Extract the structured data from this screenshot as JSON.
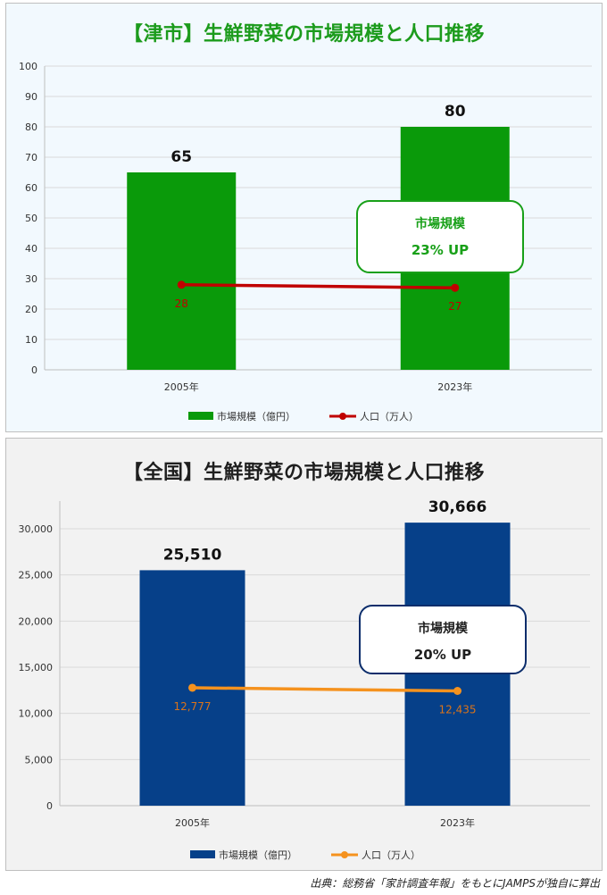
{
  "colors": {
    "tsu_bar": "#0a9a0a",
    "tsu_line": "#c00000",
    "tsu_title": "#1c9b1c",
    "japan_bar": "#064089",
    "japan_line": "#f5921e",
    "japan_title": "#1f1f1f"
  },
  "chart_data": [
    {
      "type": "bar",
      "title": "【津市】生鮮野菜の市場規模と人口推移",
      "categories": [
        "2005年",
        "2023年"
      ],
      "series": [
        {
          "name": "市場規模（億円）",
          "type": "bar",
          "values": [
            65,
            80
          ],
          "value_labels": [
            "65",
            "80"
          ]
        },
        {
          "name": "人口（万人）",
          "type": "line",
          "values": [
            28,
            27
          ],
          "value_labels": [
            "28",
            "27"
          ]
        }
      ],
      "ylim": [
        0,
        100
      ],
      "yticks": [
        "0",
        "10",
        "20",
        "30",
        "40",
        "50",
        "60",
        "70",
        "80",
        "90",
        "100"
      ],
      "grid": true,
      "legend_position": "bottom",
      "callout": {
        "line1": "市場規模",
        "line2": "23% UP"
      }
    },
    {
      "type": "bar",
      "title": "【全国】生鮮野菜の市場規模と人口推移",
      "categories": [
        "2005年",
        "2023年"
      ],
      "series": [
        {
          "name": "市場規模（億円）",
          "type": "bar",
          "values": [
            25510,
            30666
          ],
          "value_labels": [
            "25,510",
            "30,666"
          ]
        },
        {
          "name": "人口（万人）",
          "type": "line",
          "values": [
            12777,
            12435
          ],
          "value_labels": [
            "12,777",
            "12,435"
          ]
        }
      ],
      "ylim": [
        0,
        33000
      ],
      "yticks": [
        "0",
        "5,000",
        "10,000",
        "15,000",
        "20,000",
        "25,000",
        "30,000"
      ],
      "grid": true,
      "legend_position": "bottom",
      "callout": {
        "line1": "市場規模",
        "line2": "20% UP"
      }
    }
  ],
  "source_note": "出典：総務省「家計調査年報」をもとにJAMPSが独自に算出"
}
